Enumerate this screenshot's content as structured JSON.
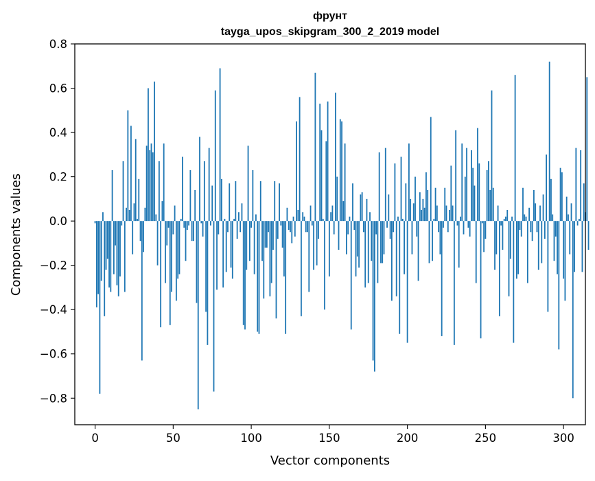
{
  "chart_data": {
    "type": "bar",
    "title_line1": "фрунт",
    "title_line2": "tayga_upos_skipgram_300_2_2019 model",
    "xlabel": "Vector components",
    "ylabel": "Components values",
    "xlim": [
      -13,
      314
    ],
    "ylim": [
      -0.92,
      0.8
    ],
    "xticks": [
      0,
      50,
      100,
      150,
      200,
      250,
      300
    ],
    "xtick_labels": [
      "0",
      "50",
      "100",
      "150",
      "200",
      "250",
      "300"
    ],
    "yticks": [
      -0.8,
      -0.6,
      -0.4,
      -0.2,
      0.0,
      0.2,
      0.4,
      0.6,
      0.8
    ],
    "ytick_labels": [
      "−0.8",
      "−0.6",
      "−0.4",
      "−0.2",
      "0.0",
      "0.2",
      "0.4",
      "0.6",
      "0.8"
    ],
    "bar_color": "#1f77b4",
    "values": [
      -0.01,
      -0.39,
      -0.33,
      -0.78,
      -0.27,
      0.04,
      -0.43,
      -0.22,
      -0.17,
      -0.3,
      -0.32,
      0.23,
      -0.24,
      -0.11,
      -0.29,
      -0.34,
      -0.25,
      -0.02,
      0.27,
      -0.32,
      0.06,
      0.5,
      0.05,
      0.43,
      -0.15,
      0.08,
      0.37,
      0.01,
      0.19,
      -0.09,
      -0.63,
      -0.14,
      0.06,
      0.34,
      0.6,
      0.32,
      0.35,
      0.31,
      0.63,
      0.03,
      -0.2,
      0.27,
      -0.48,
      0.09,
      0.35,
      -0.28,
      -0.11,
      -0.03,
      -0.47,
      -0.32,
      -0.06,
      0.07,
      -0.36,
      -0.26,
      -0.24,
      0.01,
      0.29,
      -0.03,
      -0.18,
      -0.04,
      -0.02,
      0.23,
      -0.09,
      -0.09,
      0.14,
      -0.37,
      -0.85,
      0.38,
      -0.01,
      -0.07,
      0.27,
      -0.41,
      -0.56,
      0.33,
      -0.02,
      0.16,
      -0.77,
      0.59,
      -0.31,
      -0.06,
      0.69,
      0.19,
      -0.3,
      0.01,
      -0.23,
      -0.05,
      0.17,
      -0.21,
      -0.26,
      0.01,
      0.18,
      -0.08,
      0.04,
      -0.05,
      0.08,
      -0.47,
      -0.49,
      -0.22,
      0.34,
      -0.18,
      -0.03,
      0.23,
      -0.24,
      0.03,
      -0.5,
      -0.51,
      0.18,
      -0.18,
      -0.35,
      -0.12,
      -0.12,
      -0.05,
      -0.34,
      -0.28,
      -0.13,
      0.18,
      -0.44,
      -0.08,
      0.17,
      -0.02,
      -0.12,
      -0.25,
      -0.51,
      0.06,
      -0.04,
      -0.05,
      -0.1,
      0.02,
      -0.07,
      0.45,
      0.05,
      0.56,
      -0.43,
      0.04,
      0.02,
      -0.05,
      -0.05,
      -0.32,
      0.07,
      -0.02,
      -0.22,
      0.67,
      -0.2,
      -0.08,
      0.53,
      0.41,
      0.01,
      -0.4,
      0.36,
      0.54,
      -0.25,
      0.04,
      0.07,
      -0.06,
      0.58,
      0.2,
      -0.13,
      0.46,
      0.45,
      0.09,
      0.35,
      -0.15,
      -0.06,
      0.02,
      -0.49,
      0.17,
      -0.04,
      -0.25,
      -0.16,
      -0.21,
      0.12,
      0.13,
      -0.05,
      -0.3,
      0.1,
      -0.28,
      0.04,
      -0.18,
      -0.63,
      -0.68,
      -0.06,
      -0.28,
      0.31,
      -0.19,
      -0.19,
      -0.15,
      0.33,
      -0.03,
      0.12,
      -0.08,
      -0.36,
      -0.05,
      0.26,
      -0.34,
      0.02,
      -0.51,
      0.29,
      0.01,
      -0.24,
      0.17,
      -0.55,
      0.35,
      0.1,
      -0.15,
      0.08,
      0.2,
      -0.07,
      -0.27,
      0.13,
      0.05,
      0.1,
      0.06,
      0.22,
      0.14,
      -0.19,
      0.47,
      -0.18,
      0.01,
      0.15,
      0.07,
      -0.05,
      -0.15,
      -0.52,
      -0.03,
      0.15,
      0.07,
      -0.05,
      0.05,
      0.25,
      0.07,
      -0.56,
      0.41,
      -0.02,
      -0.21,
      0.02,
      0.35,
      -0.06,
      0.2,
      0.33,
      -0.03,
      -0.07,
      0.32,
      0.24,
      0.16,
      -0.28,
      0.42,
      0.26,
      -0.53,
      -0.01,
      -0.14,
      -0.08,
      0.23,
      0.27,
      0.14,
      0.59,
      0.15,
      -0.22,
      -0.15,
      0.07,
      -0.43,
      -0.02,
      -0.13,
      0.01,
      0.02,
      0.05,
      -0.34,
      -0.17,
      0.02,
      -0.55,
      0.66,
      -0.26,
      -0.24,
      -0.04,
      -0.07,
      0.15,
      0.03,
      0.02,
      -0.28,
      0.06,
      -0.05,
      -0.09,
      0.14,
      0.08,
      -0.05,
      -0.22,
      0.07,
      -0.19,
      0.12,
      -0.08,
      0.3,
      -0.41,
      0.72,
      0.19,
      0.03,
      -0.18,
      -0.07,
      -0.24,
      -0.58,
      0.24,
      0.22,
      -0.26,
      -0.36,
      0.11,
      0.03,
      -0.15,
      0.08,
      -0.8,
      -0.23,
      0.33,
      -0.02,
      0.01,
      0.32,
      -0.23,
      0.17,
      0.04,
      0.65,
      -0.13
    ]
  }
}
